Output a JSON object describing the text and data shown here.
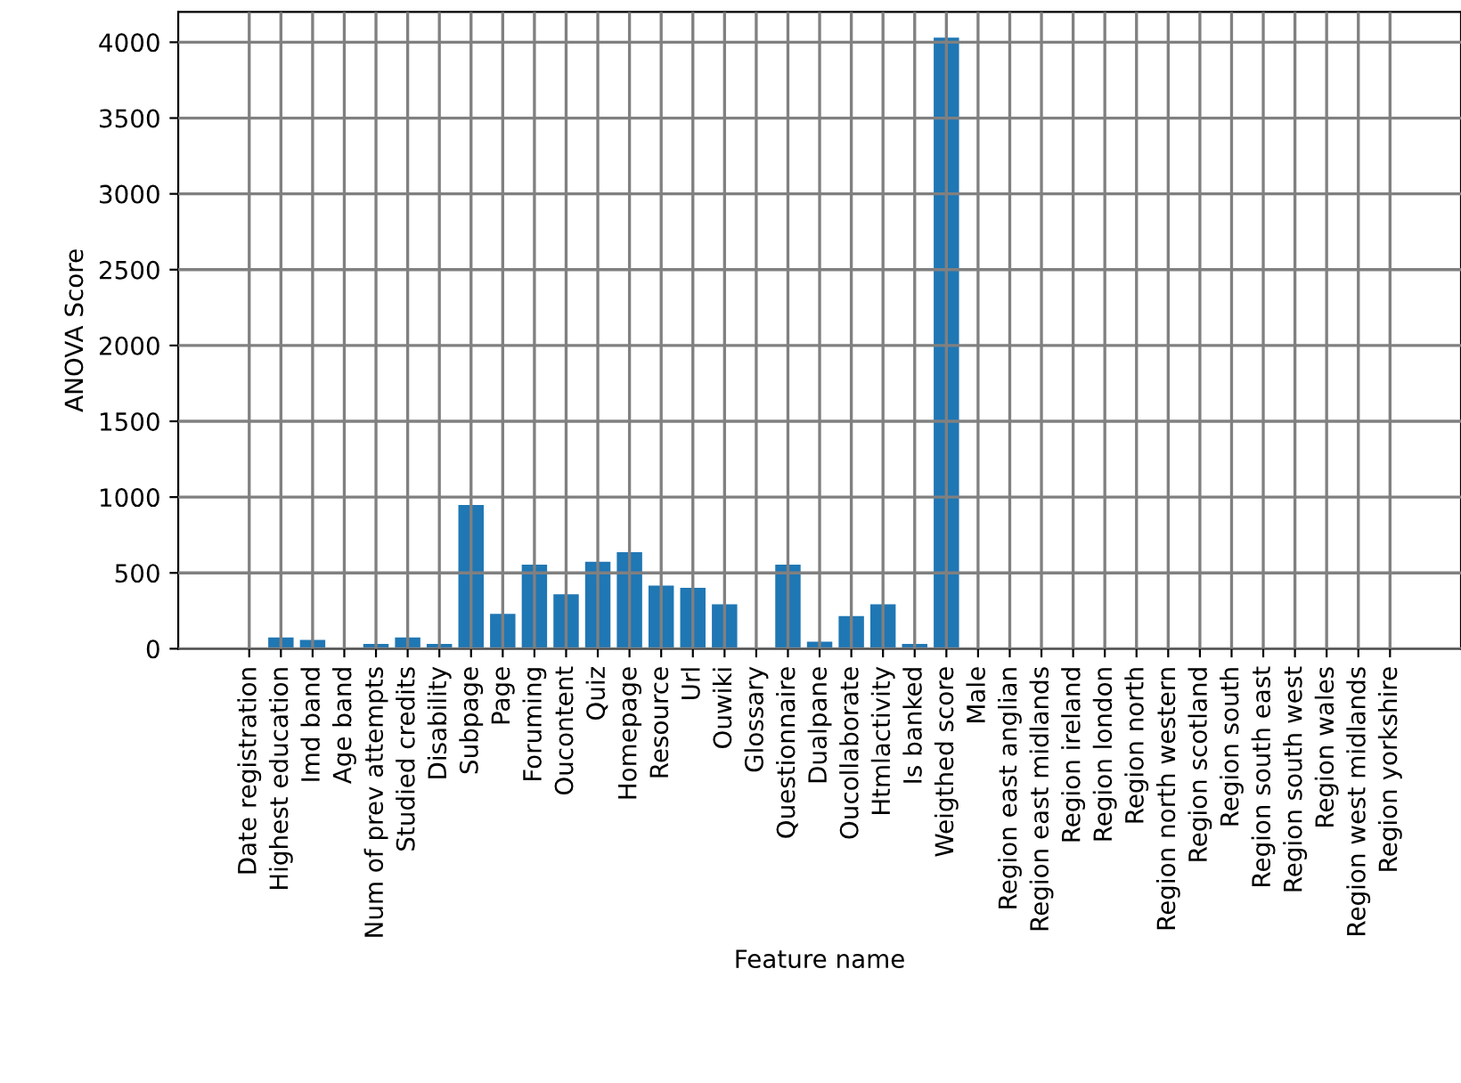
{
  "chart_data": {
    "type": "bar",
    "xlabel": "Feature name",
    "ylabel": "ANOVA Score",
    "categories": [
      "Date registration",
      "Highest education",
      "Imd band",
      "Age band",
      "Num of prev attempts",
      "Studied credits",
      "Disability",
      "Subpage",
      "Page",
      "Foruming",
      "Oucontent",
      "Quiz",
      "Homepage",
      "Resource",
      "Url",
      "Ouwiki",
      "Glossary",
      "Questionnaire",
      "Dualpane",
      "Oucollaborate",
      "Htmlactivity",
      "Is banked",
      "Weigthed score",
      "Male",
      "Region east anglian",
      "Region east midlands",
      "Region ireland",
      "Region london",
      "Region north",
      "Region north western",
      "Region scotland",
      "Region south",
      "Region south east",
      "Region south west",
      "Region wales",
      "Region west midlands",
      "Region yorkshire"
    ],
    "values": [
      0,
      74,
      58,
      0,
      31,
      74,
      31,
      948,
      230,
      554,
      359,
      573,
      636,
      417,
      402,
      293,
      0,
      554,
      47,
      215,
      293,
      31,
      4030,
      0,
      0,
      0,
      0,
      0,
      0,
      0,
      0,
      0,
      0,
      0,
      0,
      0,
      0
    ],
    "color": "#1f77b4",
    "ylim": [
      0,
      4200
    ],
    "yticks": [
      0,
      500,
      1000,
      1500,
      2000,
      2500,
      3000,
      3500,
      4000
    ],
    "grid": true
  }
}
